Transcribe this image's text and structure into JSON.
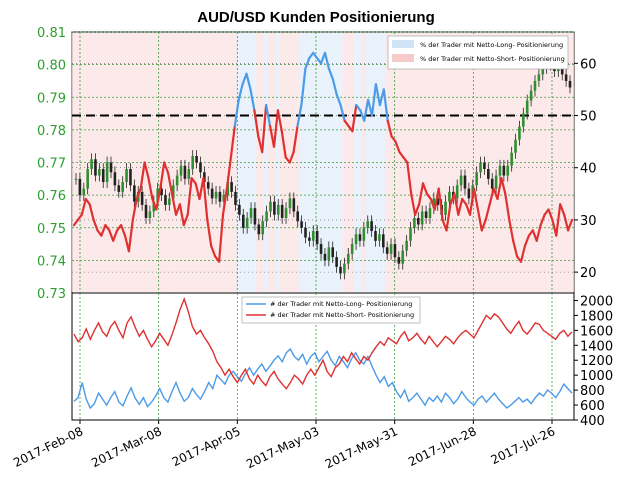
{
  "chart_data": [
    {
      "type": "candlestick+line",
      "title": "AUD/USD Kunden Positionierung",
      "x_ticks": [
        "2017-Feb-08",
        "2017-Mar-08",
        "2017-Apr-05",
        "2017-May-03",
        "2017-May-31",
        "2017-Jun-28",
        "2017-Jul-26"
      ],
      "y_left": {
        "ticks": [
          "0.73",
          "0.74",
          "0.75",
          "0.76",
          "0.77",
          "0.78",
          "0.79",
          "0.80",
          "0.81"
        ],
        "range": [
          0.73,
          0.81
        ],
        "color": "#2e9e2e"
      },
      "y_right": {
        "ticks": [
          "20",
          "30",
          "40",
          "50",
          "60"
        ],
        "range": [
          16,
          66
        ]
      },
      "threshold": 50,
      "legend": {
        "long": "% der Trader mit Netto-Long- Positionierung",
        "short": "% der Trader mit Netto-Short- Positionierung"
      },
      "candles": [
        0.765,
        0.76,
        0.762,
        0.768,
        0.771,
        0.766,
        0.768,
        0.764,
        0.77,
        0.767,
        0.763,
        0.761,
        0.764,
        0.768,
        0.763,
        0.758,
        0.761,
        0.757,
        0.753,
        0.755,
        0.758,
        0.762,
        0.76,
        0.757,
        0.759,
        0.763,
        0.766,
        0.769,
        0.765,
        0.768,
        0.772,
        0.77,
        0.767,
        0.764,
        0.762,
        0.759,
        0.761,
        0.758,
        0.76,
        0.764,
        0.761,
        0.757,
        0.754,
        0.75,
        0.753,
        0.756,
        0.751,
        0.748,
        0.752,
        0.755,
        0.758,
        0.754,
        0.757,
        0.753,
        0.756,
        0.759,
        0.755,
        0.752,
        0.75,
        0.747,
        0.746,
        0.749,
        0.745,
        0.742,
        0.74,
        0.744,
        0.741,
        0.738,
        0.736,
        0.739,
        0.742,
        0.745,
        0.748,
        0.746,
        0.75,
        0.752,
        0.749,
        0.746,
        0.748,
        0.744,
        0.742,
        0.745,
        0.741,
        0.739,
        0.743,
        0.746,
        0.75,
        0.753,
        0.751,
        0.755,
        0.753,
        0.756,
        0.759,
        0.757,
        0.754,
        0.758,
        0.761,
        0.759,
        0.763,
        0.766,
        0.762,
        0.759,
        0.763,
        0.767,
        0.77,
        0.768,
        0.765,
        0.762,
        0.766,
        0.769,
        0.766,
        0.769,
        0.773,
        0.777,
        0.781,
        0.785,
        0.789,
        0.792,
        0.795,
        0.797,
        0.799,
        0.801,
        0.8,
        0.798,
        0.8,
        0.797,
        0.795,
        0.793
      ],
      "long_pct": [
        29,
        30,
        31,
        34,
        33,
        30,
        28,
        27,
        29,
        28,
        26,
        28,
        29,
        27,
        24,
        30,
        34,
        36,
        41,
        38,
        34,
        32,
        36,
        41,
        39,
        35,
        31,
        33,
        29,
        31,
        38,
        37,
        34,
        38,
        30,
        25,
        23,
        22,
        31,
        36,
        42,
        48,
        53,
        56,
        58,
        55,
        51,
        46,
        43,
        52,
        48,
        44,
        51,
        47,
        42,
        41,
        43,
        48,
        52,
        59,
        61,
        62,
        61,
        60,
        62,
        59,
        57,
        54,
        52,
        49,
        48,
        47,
        52,
        51,
        49,
        53,
        50,
        56,
        52,
        55,
        49,
        46,
        45,
        43,
        42,
        41,
        35,
        31,
        33,
        37,
        35,
        34,
        32,
        36,
        30,
        28,
        33,
        35,
        31,
        34,
        33,
        31,
        36,
        32,
        28,
        30,
        33,
        36,
        34,
        38,
        35,
        30,
        26,
        23,
        22,
        25,
        27,
        28,
        26,
        29,
        31,
        32,
        30,
        27,
        33,
        31,
        28,
        30
      ],
      "short_pct": [],
      "panel": "upper"
    },
    {
      "type": "line",
      "panel": "lower",
      "y_right": {
        "ticks": [
          "400",
          "600",
          "800",
          "1000",
          "1200",
          "1400",
          "1600",
          "1800",
          "2000"
        ],
        "range": [
          400,
          2100
        ]
      },
      "legend": {
        "long": "# der Trader mit Netto-Long- Positionierung",
        "short": "# der Trader mit Netto-Short- Positionierung"
      },
      "series": [
        {
          "name": "# der Trader mit Netto-Long- Positionierung",
          "color": "#4c9be8",
          "values": [
            650,
            700,
            900,
            680,
            560,
            620,
            760,
            680,
            600,
            700,
            780,
            640,
            590,
            720,
            830,
            690,
            610,
            700,
            580,
            640,
            720,
            820,
            700,
            640,
            780,
            900,
            760,
            650,
            700,
            820,
            740,
            680,
            780,
            900,
            820,
            1000,
            940,
            880,
            1000,
            1050,
            980,
            920,
            1020,
            1100,
            1000,
            1080,
            1150,
            1050,
            1120,
            1200,
            1260,
            1180,
            1300,
            1350,
            1250,
            1200,
            1280,
            1150,
            1250,
            1300,
            1180,
            1250,
            1320,
            1200,
            1130,
            1250,
            1180,
            1100,
            1220,
            1300,
            1200,
            1150,
            1250,
            1120,
            1000,
            900,
            980,
            850,
            900,
            780,
            700,
            800,
            650,
            700,
            760,
            680,
            600,
            700,
            650,
            720,
            640,
            760,
            700,
            620,
            680,
            780,
            700,
            640,
            600,
            680,
            720,
            640,
            700,
            760,
            680,
            620,
            560,
            600,
            650,
            700,
            640,
            680,
            620,
            700,
            760,
            720,
            800,
            760,
            700,
            780,
            880,
            820,
            760
          ]
        },
        {
          "name": "# der Trader mit Netto-Short- Positionierung",
          "color": "#e03030",
          "values": [
            1550,
            1450,
            1500,
            1620,
            1480,
            1600,
            1700,
            1580,
            1520,
            1650,
            1720,
            1600,
            1500,
            1700,
            1780,
            1640,
            1520,
            1600,
            1480,
            1380,
            1460,
            1560,
            1480,
            1400,
            1540,
            1700,
            1880,
            2020,
            1850,
            1650,
            1550,
            1600,
            1500,
            1420,
            1320,
            1180,
            1100,
            1000,
            1080,
            980,
            900,
            1000,
            1080,
            950,
            880,
            1000,
            920,
            860,
            980,
            1050,
            950,
            880,
            820,
            900,
            1000,
            950,
            880,
            1000,
            1080,
            1000,
            1100,
            1200,
            1050,
            980,
            1100,
            1150,
            1250,
            1180,
            1300,
            1220,
            1150,
            1250,
            1200,
            1300,
            1380,
            1450,
            1400,
            1500,
            1460,
            1420,
            1520,
            1580,
            1460,
            1500,
            1560,
            1480,
            1420,
            1520,
            1450,
            1380,
            1450,
            1520,
            1480,
            1420,
            1500,
            1560,
            1600,
            1550,
            1500,
            1600,
            1700,
            1800,
            1750,
            1820,
            1780,
            1700,
            1620,
            1560,
            1650,
            1720,
            1600,
            1550,
            1620,
            1700,
            1680,
            1600,
            1560,
            1520,
            1480,
            1560,
            1600,
            1520,
            1580
          ]
        }
      ]
    }
  ]
}
